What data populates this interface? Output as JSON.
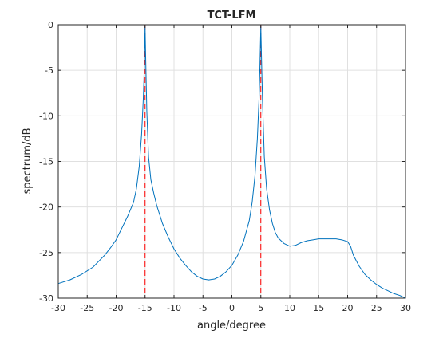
{
  "chart_data": {
    "type": "line",
    "title": "TCT-LFM",
    "xlabel": "angle/degree",
    "ylabel": "spectrum/dB",
    "xlim": [
      -30,
      30
    ],
    "ylim": [
      -30,
      0
    ],
    "xticks": [
      -30,
      -25,
      -20,
      -15,
      -10,
      -5,
      0,
      5,
      10,
      15,
      20,
      25,
      30
    ],
    "yticks": [
      0,
      -5,
      -10,
      -15,
      -20,
      -25,
      -30
    ],
    "grid": true,
    "legend": "none",
    "colors": {
      "spectrum": "#0072bd",
      "reference": "#ff0000",
      "grid": "#e0e0e0",
      "axis": "#262626"
    },
    "series": [
      {
        "x": [
          -30,
          -28,
          -26,
          -24,
          -22,
          -21,
          -20,
          -19,
          -18,
          -17,
          -16.5,
          -16,
          -15.6,
          -15.3,
          -15.15,
          -15,
          -14.85,
          -14.7,
          -14.4,
          -14,
          -13.5,
          -13,
          -12,
          -11,
          -10,
          -9,
          -8,
          -7,
          -6,
          -5,
          -4,
          -3,
          -2,
          -1,
          0,
          1,
          2,
          3,
          3.5,
          4,
          4.4,
          4.7,
          4.85,
          5,
          5.15,
          5.3,
          5.6,
          6,
          6.5,
          7,
          7.5,
          8,
          9,
          10,
          11,
          12,
          13,
          14,
          15,
          16,
          17,
          18,
          19,
          20,
          20.5,
          21,
          22,
          23,
          24,
          25,
          26,
          27,
          28,
          29,
          30
        ],
        "y": [
          -28.4,
          -28.0,
          -27.4,
          -26.6,
          -25.3,
          -24.5,
          -23.6,
          -22.3,
          -21.0,
          -19.5,
          -18.0,
          -15.5,
          -12.0,
          -8.0,
          -5.0,
          -0.2,
          -5.0,
          -9.5,
          -14.5,
          -17.0,
          -18.5,
          -19.8,
          -21.8,
          -23.3,
          -24.6,
          -25.6,
          -26.4,
          -27.1,
          -27.6,
          -27.9,
          -28.0,
          -27.9,
          -27.6,
          -27.1,
          -26.4,
          -25.3,
          -23.8,
          -21.5,
          -19.5,
          -16.5,
          -12.5,
          -8.0,
          -4.5,
          -0.2,
          -4.5,
          -8.5,
          -14.5,
          -18.0,
          -20.3,
          -21.8,
          -22.8,
          -23.4,
          -24.0,
          -24.3,
          -24.2,
          -23.9,
          -23.7,
          -23.6,
          -23.5,
          -23.5,
          -23.5,
          -23.5,
          -23.6,
          -23.8,
          -24.3,
          -25.3,
          -26.5,
          -27.4,
          -28.0,
          -28.5,
          -28.9,
          -29.2,
          -29.5,
          -29.7,
          -30.0
        ]
      }
    ],
    "reference_lines_x": [
      -15,
      5
    ]
  }
}
